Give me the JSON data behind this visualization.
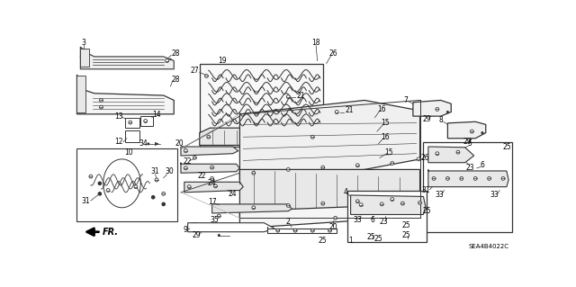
{
  "bg_color": "#ffffff",
  "part_number": "SEA4B4022C",
  "lc": "#000000",
  "gray": "#666666",
  "lgray": "#aaaaaa",
  "dgray": "#333333"
}
